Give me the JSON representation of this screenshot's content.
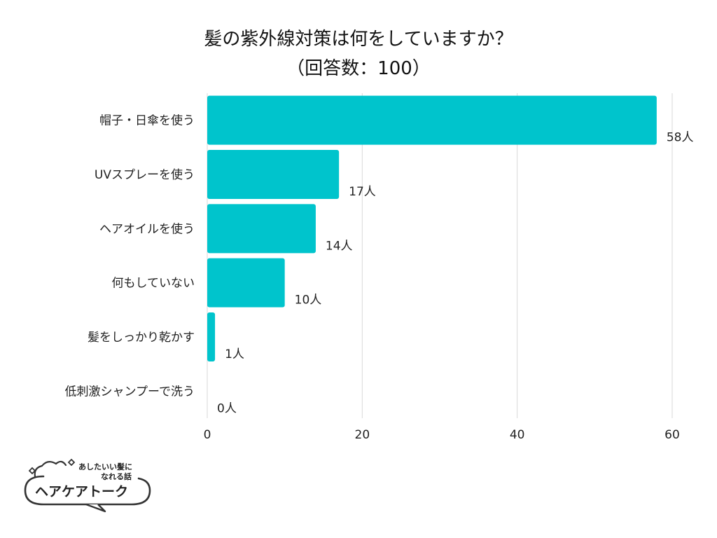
{
  "chart_data": {
    "type": "bar",
    "orientation": "horizontal",
    "title": [
      "髪の紫外線対策は何をしていますか？",
      "（回答数：100）"
    ],
    "categories": [
      "帽子・日傘を使う",
      "UVスプレーを使う",
      "ヘアオイルを使う",
      "何もしていない",
      "髪をしっかり乾かす",
      "低刺激シャンプーで洗う"
    ],
    "values": [
      58,
      17,
      14,
      10,
      1,
      0
    ],
    "data_labels": [
      "58人",
      "17人",
      "14人",
      "10人",
      "1人",
      "0人"
    ],
    "x_ticks": [
      "0",
      "20",
      "40",
      "60"
    ],
    "xlim": [
      0,
      60
    ],
    "grid": true,
    "bar_color": "#00C4CC",
    "grid_color": "#D9D9D9"
  },
  "logo": {
    "tagline_1": "あしたいい髪に",
    "tagline_2": "なれる話",
    "name": "ヘアケアトーク"
  }
}
